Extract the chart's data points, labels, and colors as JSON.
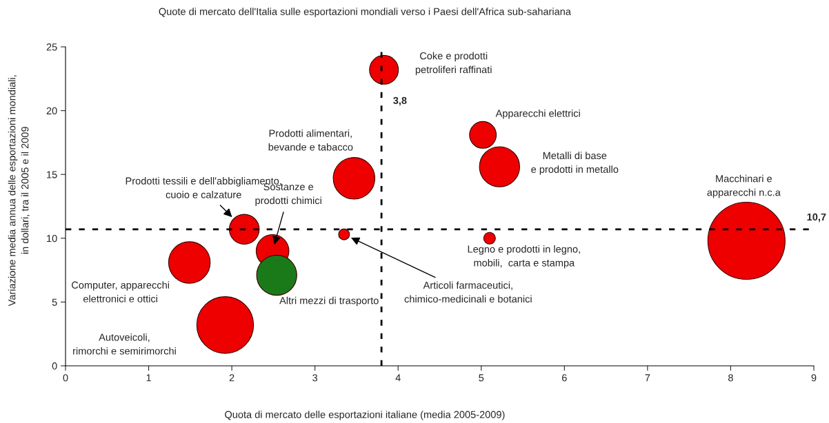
{
  "chart_data": {
    "type": "bubble",
    "title": "Quote di mercato dell'Italia sulle esportazioni mondiali verso i Paesi dell'Africa sub-sahariana",
    "xlabel": "Quota di mercato delle esportazioni italiane (media 2005-2009)",
    "ylabel": "Variazione media annua delle esportazioni mondiali,\nin dollari, tra il 2005 e il 2009",
    "x": [
      1.49,
      1.92,
      2.15,
      2.49,
      2.54,
      3.35,
      3.47,
      3.83,
      5.02,
      5.22,
      5.1,
      8.19
    ],
    "values": [
      8.1,
      3.2,
      10.7,
      9.0,
      7.1,
      10.3,
      14.7,
      23.2,
      18.1,
      15.6,
      10.0,
      9.8
    ],
    "sizes": [
      0.29,
      0.54,
      0.15,
      0.18,
      0.27,
      0.02,
      0.29,
      0.14,
      0.12,
      0.27,
      0.023,
      1
    ],
    "colors": [
      "#ee0000",
      "#ee0000",
      "#ee0000",
      "#ee0000",
      "#1a7a1a",
      "#ee0000",
      "#ee0000",
      "#ee0000",
      "#ee0000",
      "#ee0000",
      "#ee0000",
      "#ee0000"
    ],
    "marker": "circle",
    "annotations": [
      "Computer, apparecchi\nelettronici e ottici",
      "Autoveicoli,\nrimorchi e semirimorchi",
      "Prodotti tessili e dell'abbigliamento,\ncuoio e calzature",
      "Sostanze e\nprodotti chimici",
      "Altri mezzi di trasporto",
      "Articoli farmaceutici,\nchimico-medicinali e botanici",
      "Prodotti alimentari,\nbevande e tabacco",
      "Coke e prodotti\npetroliferi raffinati",
      "Apparecchi elettrici",
      "Metalli di base\ne prodotti in metallo",
      "Legno e prodotti in legno,\nmobili,  carta e stampa",
      "Macchinari e\napparecchi n.c.a"
    ],
    "ref_lines": [
      {
        "axis": "x",
        "value": 3.8,
        "label": "3,8",
        "color": "#000000",
        "line_style": "dashed"
      },
      {
        "axis": "y",
        "value": 10.7,
        "label": "10,7",
        "color": "#000000",
        "line_style": "dashed"
      }
    ],
    "xlim": [
      0,
      9
    ],
    "xticks": [
      0,
      1,
      2,
      3,
      4,
      5,
      6,
      7,
      8,
      9
    ],
    "ylim": [
      0,
      25
    ],
    "yticks": [
      0,
      5,
      10,
      15,
      20,
      25
    ],
    "grid": false,
    "legend": false
  }
}
